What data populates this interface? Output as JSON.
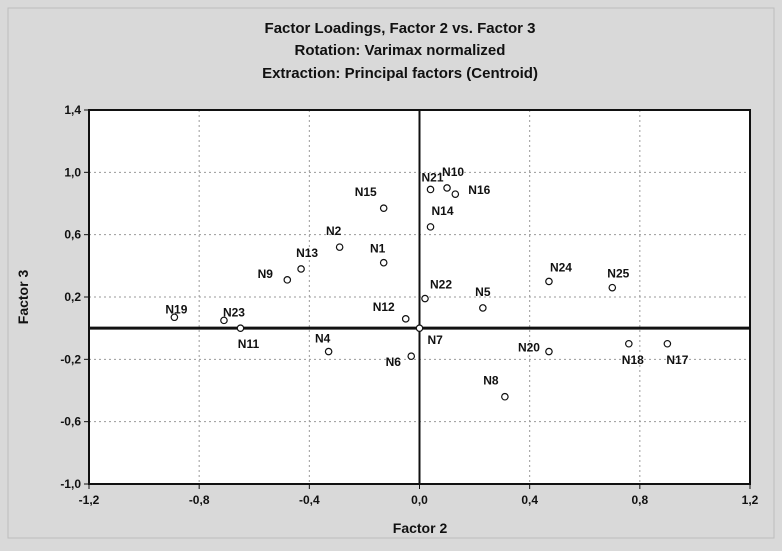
{
  "chart_data": {
    "type": "scatter",
    "title": "Factor Loadings, Factor 2 vs. Factor 3",
    "subtitle_lines": [
      "Rotation: Varimax normalized",
      "Extraction: Principal factors (Centroid)"
    ],
    "xlabel": "Factor 2",
    "ylabel": "Factor 3",
    "xlim": [
      -1.2,
      1.2
    ],
    "ylim": [
      -1.0,
      1.4
    ],
    "x_ticks": [
      -1.2,
      -0.8,
      -0.4,
      0.0,
      0.4,
      0.8,
      1.2
    ],
    "y_ticks": [
      -1.0,
      -0.6,
      -0.2,
      0.2,
      0.6,
      1.0,
      1.4
    ],
    "x_tick_labels": [
      "-1,2",
      "-0,8",
      "-0,4",
      "0,0",
      "0,4",
      "0,8",
      "1,2"
    ],
    "y_tick_labels": [
      "-1,0",
      "-0,6",
      "-0,2",
      "0,2",
      "0,6",
      "1,0",
      "1,4"
    ],
    "grid": true,
    "reference_lines": {
      "x": 0.0,
      "y": 0.0
    },
    "marker": "circle-open",
    "colors": {
      "background": "#d9d9d9",
      "plot_bg": "#ffffff",
      "grid": "#9a9a9a",
      "ink": "#111111"
    },
    "points": [
      {
        "label": "N1",
        "x": -0.13,
        "y": 0.42
      },
      {
        "label": "N2",
        "x": -0.29,
        "y": 0.52
      },
      {
        "label": "N4",
        "x": -0.33,
        "y": -0.15
      },
      {
        "label": "N5",
        "x": 0.23,
        "y": 0.13
      },
      {
        "label": "N6",
        "x": -0.03,
        "y": -0.18
      },
      {
        "label": "N7",
        "x": 0.0,
        "y": 0.0
      },
      {
        "label": "N8",
        "x": 0.31,
        "y": -0.44
      },
      {
        "label": "N9",
        "x": -0.48,
        "y": 0.31
      },
      {
        "label": "N10",
        "x": 0.1,
        "y": 0.9
      },
      {
        "label": "N11",
        "x": -0.65,
        "y": 0.0
      },
      {
        "label": "N12",
        "x": -0.05,
        "y": 0.06
      },
      {
        "label": "N13",
        "x": -0.43,
        "y": 0.38
      },
      {
        "label": "N14",
        "x": 0.04,
        "y": 0.65
      },
      {
        "label": "N15",
        "x": -0.13,
        "y": 0.77
      },
      {
        "label": "N16",
        "x": 0.13,
        "y": 0.86
      },
      {
        "label": "N17",
        "x": 0.9,
        "y": -0.1
      },
      {
        "label": "N18",
        "x": 0.76,
        "y": -0.1
      },
      {
        "label": "N19",
        "x": -0.89,
        "y": 0.07
      },
      {
        "label": "N20",
        "x": 0.47,
        "y": -0.15
      },
      {
        "label": "N21",
        "x": 0.04,
        "y": 0.89
      },
      {
        "label": "N22",
        "x": 0.02,
        "y": 0.19
      },
      {
        "label": "N23",
        "x": -0.71,
        "y": 0.05
      },
      {
        "label": "N24",
        "x": 0.47,
        "y": 0.3
      },
      {
        "label": "N25",
        "x": 0.7,
        "y": 0.26
      }
    ]
  }
}
